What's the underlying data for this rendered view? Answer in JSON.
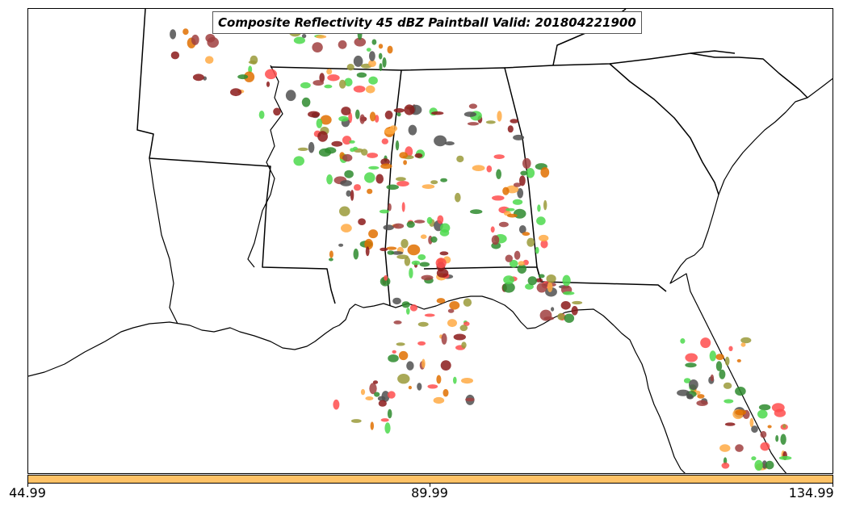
{
  "title": "Composite Reflectivity 45 dBZ Paintball Valid: 201804221900",
  "colorbar": {
    "color": "#ffc266",
    "ticks": [
      "44.99",
      "89.99",
      "134.99"
    ]
  },
  "paintball_colors": [
    "#ff4d4d",
    "#ffaa44",
    "#4cd94c",
    "#2e8b2e",
    "#8b1a1a",
    "#9a9a3a",
    "#505050",
    "#a04040",
    "#e07000"
  ]
}
